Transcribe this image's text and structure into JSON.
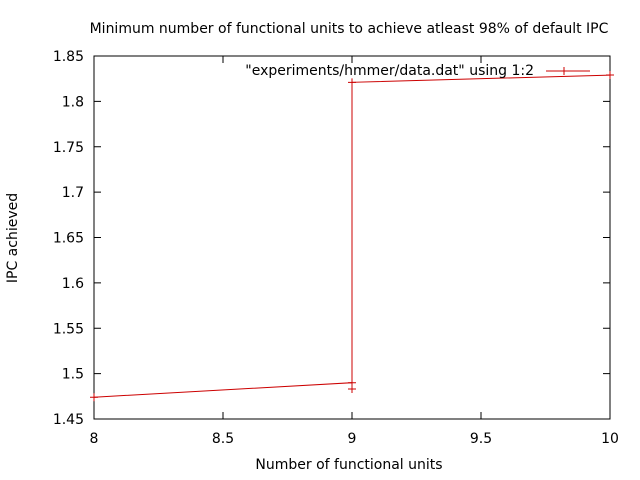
{
  "chart_data": {
    "type": "line",
    "title": "Minimum number of functional units to achieve atleast 98% of default IPC",
    "xlabel": "Number of functional units",
    "ylabel": "IPC achieved",
    "xlim": [
      8,
      10
    ],
    "ylim": [
      1.45,
      1.85
    ],
    "x_ticks": [
      "8",
      "8.5",
      "9",
      "9.5",
      "10"
    ],
    "y_ticks": [
      "1.45",
      "1.5",
      "1.55",
      "1.6",
      "1.65",
      "1.7",
      "1.75",
      "1.8",
      "1.85"
    ],
    "grid": false,
    "legend_position": "top-right",
    "series": [
      {
        "name": "\"experiments/hmmer/data.dat\" using 1:2",
        "color": "#cc0000",
        "marker": "plus",
        "x": [
          8,
          9,
          9,
          9,
          10
        ],
        "y": [
          1.474,
          1.49,
          1.483,
          1.821,
          1.829
        ]
      }
    ]
  }
}
